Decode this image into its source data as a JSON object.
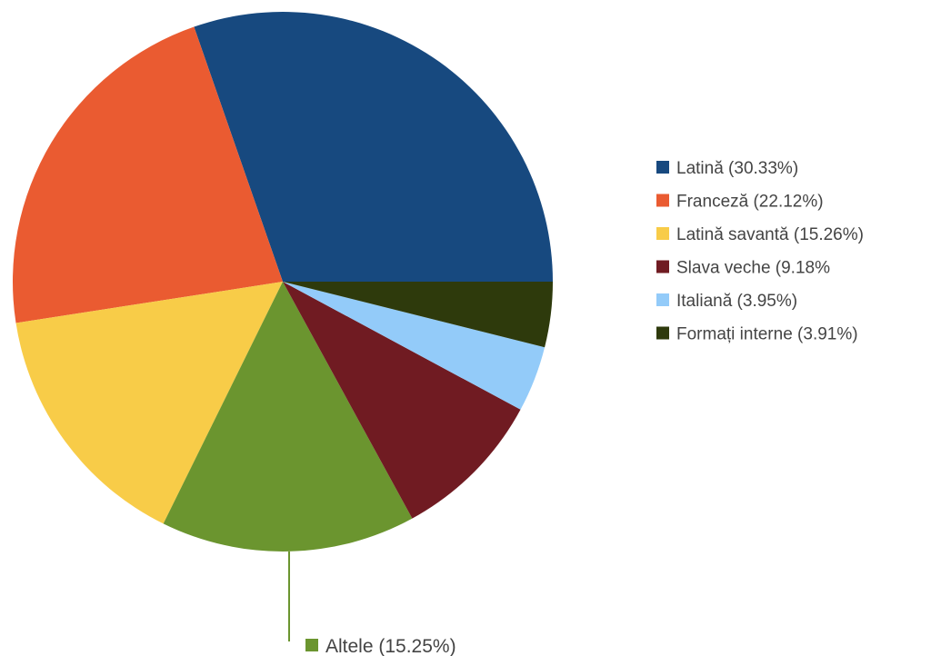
{
  "chart_data": {
    "type": "pie",
    "slices": [
      {
        "label": "Latină (30.33%)",
        "value": 30.33,
        "color": "#17497f"
      },
      {
        "label": "Franceză (22.12%)",
        "value": 22.12,
        "color": "#ea5b31"
      },
      {
        "label": "Latină savantă (15.26%)",
        "value": 15.26,
        "color": "#f8cc48"
      },
      {
        "label": "Altele (15.25%)",
        "value": 15.25,
        "color": "#6b952f"
      },
      {
        "label": "Slava veche (9.18%",
        "value": 9.18,
        "color": "#701b22"
      },
      {
        "label": "Italiană (3.95%)",
        "value": 3.95,
        "color": "#93cbf9"
      },
      {
        "label": "Formați interne (3.91%)",
        "value": 3.91,
        "color": "#2e3a0c"
      }
    ],
    "legend": {
      "placement": "right",
      "entries": [
        "Latină (30.33%)",
        "Franceză (22.12%)",
        "Latină savantă (15.26%)",
        "Slava veche (9.18%",
        "Italiană (3.95%)",
        "Formați interne (3.91%)"
      ]
    },
    "callout": "Altele (15.25%)"
  }
}
